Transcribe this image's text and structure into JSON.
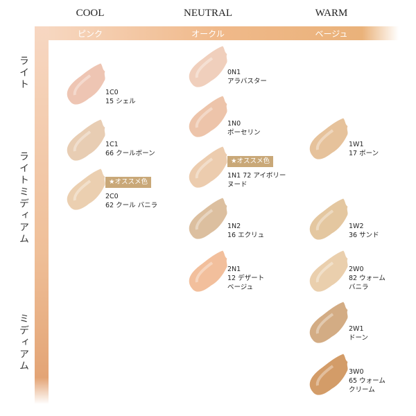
{
  "columns": [
    {
      "title": "COOL",
      "subtitle": "ピンク"
    },
    {
      "title": "NEUTRAL",
      "subtitle": "オークル"
    },
    {
      "title": "WARM",
      "subtitle": "ベージュ"
    }
  ],
  "rows": [
    "ライト",
    "ライトミディアム",
    "ミディアム"
  ],
  "swatches": [
    {
      "code": "1C0",
      "lines": [
        "15 シェル"
      ],
      "color": "#eec5b3"
    },
    {
      "code": "1C1",
      "lines": [
        "66 クールボーン"
      ],
      "color": "#e8cdb3"
    },
    {
      "badge": "★オススメ色",
      "code": "2C0",
      "lines": [
        "62 クール バニラ"
      ],
      "color": "#ebcfb0"
    },
    {
      "code": "0N1",
      "lines": [
        "アラバスター"
      ],
      "color": "#f0cfbc"
    },
    {
      "code": "1N0",
      "lines": [
        "ポーセリン"
      ],
      "color": "#edc4aa"
    },
    {
      "badge": "★オススメ色",
      "code": "1N1 72 アイボリー",
      "lines": [
        "ヌード"
      ],
      "color": "#ecccae"
    },
    {
      "code": "1N2",
      "lines": [
        "16 エクリュ"
      ],
      "color": "#dcbf9f"
    },
    {
      "code": "2N1",
      "lines": [
        "12 デザート",
        "ベージュ"
      ],
      "color": "#f2bf9c"
    },
    {
      "code": "1W1",
      "lines": [
        "17 ボーン"
      ],
      "color": "#e6c29b"
    },
    {
      "code": "1W2",
      "lines": [
        "36 サンド"
      ],
      "color": "#e4c7a0"
    },
    {
      "code": "2W0",
      "lines": [
        "82 ウォーム",
        "バニラ"
      ],
      "color": "#eacfad"
    },
    {
      "code": "2W1",
      "lines": [
        "ドーン"
      ],
      "color": "#d3ac84"
    },
    {
      "code": "3W0",
      "lines": [
        "65 ウォーム",
        "クリーム"
      ],
      "color": "#d39c68"
    }
  ]
}
